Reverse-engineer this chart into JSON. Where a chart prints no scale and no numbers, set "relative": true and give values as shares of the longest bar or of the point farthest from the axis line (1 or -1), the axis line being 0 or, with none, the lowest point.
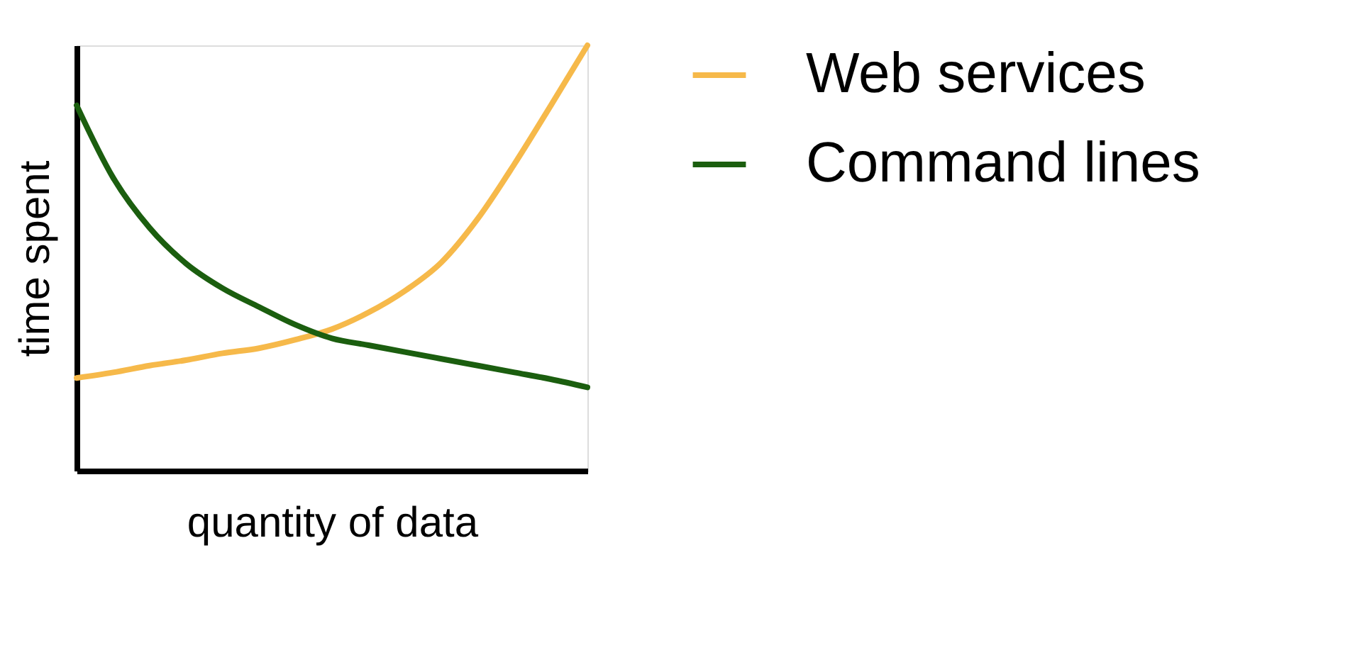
{
  "chart_data": {
    "type": "line",
    "relative": true,
    "xlabel": "quantity of data",
    "ylabel": "time spent",
    "legend": "right",
    "grid": false,
    "marker": "none",
    "line_style": "solid",
    "tick_labels": false,
    "categories": [
      null,
      null,
      null,
      null,
      null,
      null,
      null,
      null,
      null,
      null,
      null,
      null,
      null,
      null,
      null
    ],
    "series": [
      {
        "name": "Web services",
        "color": "#f6b94a",
        "values": [
          0.218,
          0.231,
          0.247,
          0.26,
          0.276,
          0.288,
          0.308,
          0.333,
          0.372,
          0.423,
          0.49,
          0.593,
          0.721,
          0.859,
          1.0
        ]
      },
      {
        "name": "Command lines",
        "color": "#1b5e0f",
        "values": [
          0.859,
          0.689,
          0.571,
          0.487,
          0.429,
          0.385,
          0.343,
          0.311,
          0.295,
          0.279,
          0.263,
          0.247,
          0.231,
          0.215,
          0.196
        ]
      }
    ]
  }
}
